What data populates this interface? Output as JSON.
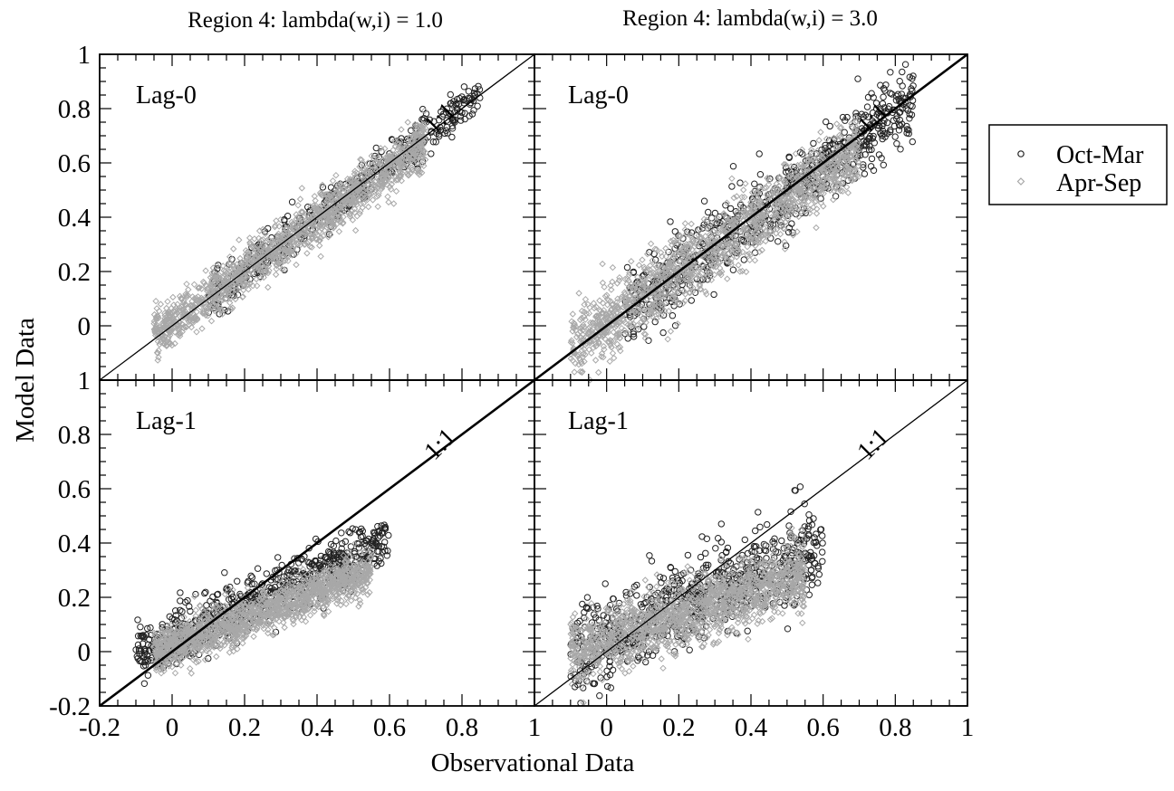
{
  "chart_data": {
    "type": "scatter",
    "xlabel": "Observational Data",
    "ylabel": "Model Data",
    "legend": {
      "placement": "right",
      "entries": [
        {
          "name": "Oct-Mar",
          "marker": "circle",
          "color": "#222222"
        },
        {
          "name": "Apr-Sep",
          "marker": "diamond",
          "color": "#a8a8a8"
        }
      ]
    },
    "grid": false,
    "xlim": [
      -0.2,
      1.0
    ],
    "ylim": [
      -0.2,
      1.0
    ],
    "x_tick_labels_left": [
      "-0.2",
      "0",
      "0.2",
      "0.4",
      "0.6",
      "0.8",
      "1"
    ],
    "x_tick_labels_right": [
      "1",
      "0",
      "0.2",
      "0.4",
      "0.6",
      "0.8",
      "1"
    ],
    "y_tick_labels_top": [
      "1",
      "0.8",
      "0.6",
      "0.4",
      "0.2",
      "0"
    ],
    "y_tick_labels_bottom": [
      "1",
      "0.8",
      "0.6",
      "0.4",
      "0.2",
      "0",
      "-0.2"
    ],
    "reference_line_label": "1:1",
    "panels": [
      {
        "id": "lag0-lambda1",
        "column_title": "Region 4: lambda(w,i) = 1.0",
        "label": "Lag-0",
        "series": [
          {
            "name": "Oct-Mar",
            "cloud": {
              "x_range": [
                0.1,
                0.85
              ],
              "slope": 1.0,
              "intercept": 0.0,
              "spread": 0.04,
              "n": 420
            }
          },
          {
            "name": "Apr-Sep",
            "cloud": {
              "x_range": [
                -0.05,
                0.7
              ],
              "slope": 0.95,
              "intercept": 0.01,
              "spread": 0.045,
              "n": 1400
            }
          }
        ]
      },
      {
        "id": "lag0-lambda3",
        "column_title": "Region 4: lambda(w,i) = 3.0",
        "label": "Lag-0",
        "series": [
          {
            "name": "Oct-Mar",
            "cloud": {
              "x_range": [
                0.05,
                0.85
              ],
              "slope": 0.98,
              "intercept": 0.0,
              "spread": 0.07,
              "n": 700
            }
          },
          {
            "name": "Apr-Sep",
            "cloud": {
              "x_range": [
                -0.1,
                0.7
              ],
              "slope": 0.9,
              "intercept": 0.02,
              "spread": 0.065,
              "n": 1400
            }
          }
        ]
      },
      {
        "id": "lag1-lambda1",
        "column_title": "",
        "label": "Lag-1",
        "series": [
          {
            "name": "Oct-Mar",
            "cloud": {
              "x_range": [
                -0.1,
                0.6
              ],
              "slope": 0.6,
              "intercept": 0.05,
              "spread": 0.05,
              "n": 700
            }
          },
          {
            "name": "Apr-Sep",
            "cloud": {
              "x_range": [
                -0.05,
                0.55
              ],
              "slope": 0.5,
              "intercept": 0.02,
              "spread": 0.04,
              "n": 1400
            }
          }
        ]
      },
      {
        "id": "lag1-lambda3",
        "column_title": "",
        "label": "Lag-1",
        "series": [
          {
            "name": "Oct-Mar",
            "cloud": {
              "x_range": [
                -0.1,
                0.6
              ],
              "slope": 0.55,
              "intercept": 0.06,
              "spread": 0.08,
              "n": 700
            }
          },
          {
            "name": "Apr-Sep",
            "cloud": {
              "x_range": [
                -0.1,
                0.55
              ],
              "slope": 0.45,
              "intercept": 0.04,
              "spread": 0.06,
              "n": 1400
            }
          }
        ]
      }
    ]
  }
}
